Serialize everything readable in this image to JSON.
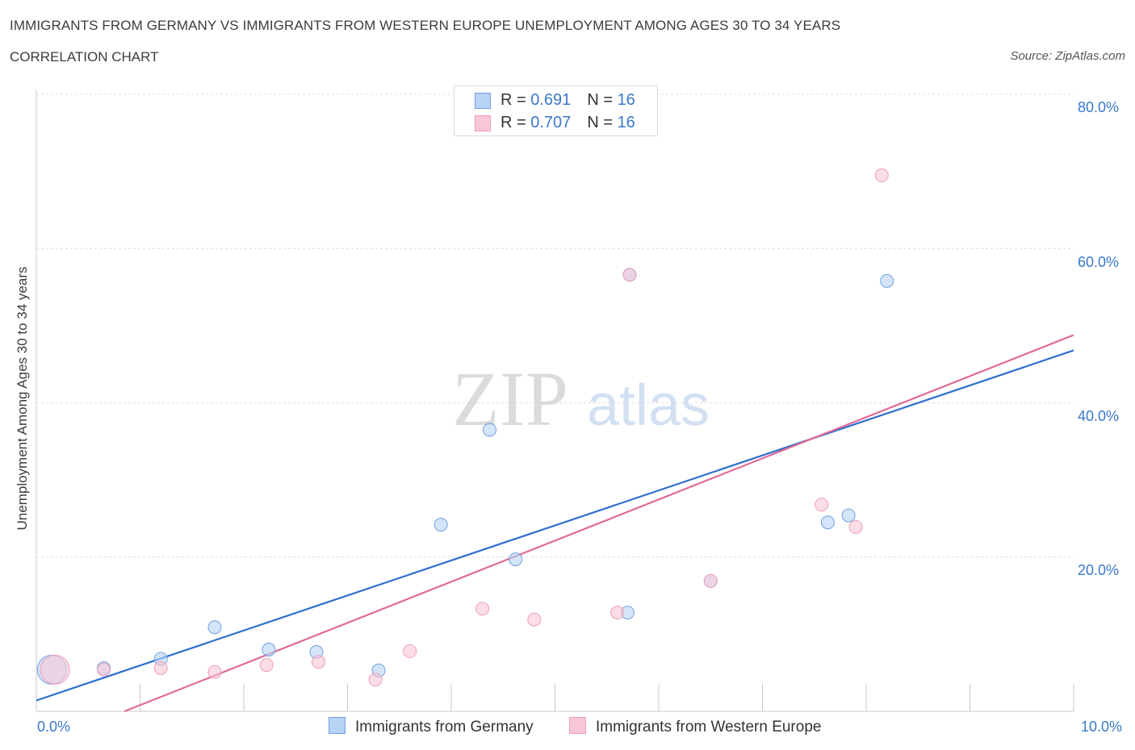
{
  "header": {
    "title": "IMMIGRANTS FROM GERMANY VS IMMIGRANTS FROM WESTERN EUROPE UNEMPLOYMENT AMONG AGES 30 TO 34 YEARS",
    "subtitle": "CORRELATION CHART",
    "source": "Source: ZipAtlas.com"
  },
  "watermark": {
    "zip": "ZIP",
    "atlas": "atlas"
  },
  "legend_top": {
    "rows": [
      {
        "r_label": "R = ",
        "r_value": "0.691",
        "n_label": "N = ",
        "n_value": "16"
      },
      {
        "r_label": "R = ",
        "r_value": "0.707",
        "n_label": "N = ",
        "n_value": "16"
      }
    ]
  },
  "legend_bottom": {
    "germany": "Immigrants from Germany",
    "western_europe": "Immigrants from Western Europe"
  },
  "axes": {
    "ylabel": "Unemployment Among Ages 30 to 34 years",
    "x_min_label": "0.0%",
    "x_max_label": "10.0%",
    "y_ticks": [
      "80.0%",
      "60.0%",
      "40.0%",
      "20.0%"
    ]
  },
  "colors": {
    "germany_fill": "#b8d3f5",
    "germany_stroke": "#6fa0e0",
    "germany_line": "#2f6fcf",
    "we_fill": "#f9c6d5",
    "we_stroke": "#ee9fb7",
    "we_line": "#e06a95",
    "tick_text": "#3a78c9",
    "grid": "#dcdcdc"
  },
  "chart_data": {
    "type": "scatter",
    "title": "IMMIGRANTS FROM GERMANY VS IMMIGRANTS FROM WESTERN EUROPE UNEMPLOYMENT AMONG AGES 30 TO 34 YEARS",
    "xlabel": "",
    "ylabel": "Unemployment Among Ages 30 to 34 years",
    "xlim": [
      0,
      10
    ],
    "ylim": [
      0,
      80
    ],
    "x_unit": "%",
    "y_unit": "%",
    "grid": true,
    "series": [
      {
        "name": "Immigrants from Germany",
        "R": 0.691,
        "N": 16,
        "points": [
          {
            "x": 0.15,
            "y": 5.4,
            "size": "large"
          },
          {
            "x": 0.65,
            "y": 5.6
          },
          {
            "x": 1.2,
            "y": 6.8
          },
          {
            "x": 1.72,
            "y": 10.9
          },
          {
            "x": 2.24,
            "y": 8.0
          },
          {
            "x": 2.7,
            "y": 7.7
          },
          {
            "x": 3.3,
            "y": 5.3
          },
          {
            "x": 3.9,
            "y": 24.2
          },
          {
            "x": 4.37,
            "y": 36.5
          },
          {
            "x": 4.62,
            "y": 19.7
          },
          {
            "x": 5.7,
            "y": 12.8
          },
          {
            "x": 5.72,
            "y": 56.6
          },
          {
            "x": 6.5,
            "y": 16.9
          },
          {
            "x": 7.63,
            "y": 24.5
          },
          {
            "x": 7.83,
            "y": 25.4
          },
          {
            "x": 8.2,
            "y": 55.8
          }
        ],
        "trend": {
          "x": [
            0,
            10
          ],
          "y": [
            1.4,
            46.8
          ]
        }
      },
      {
        "name": "Immigrants from Western Europe",
        "R": 0.707,
        "N": 16,
        "points": [
          {
            "x": 0.18,
            "y": 5.4,
            "size": "large"
          },
          {
            "x": 0.65,
            "y": 5.4
          },
          {
            "x": 1.2,
            "y": 5.6
          },
          {
            "x": 1.72,
            "y": 5.1
          },
          {
            "x": 2.22,
            "y": 6.0
          },
          {
            "x": 2.72,
            "y": 6.4
          },
          {
            "x": 3.27,
            "y": 4.1
          },
          {
            "x": 3.6,
            "y": 7.8
          },
          {
            "x": 4.3,
            "y": 13.3
          },
          {
            "x": 4.8,
            "y": 11.9
          },
          {
            "x": 5.6,
            "y": 12.8
          },
          {
            "x": 5.72,
            "y": 56.6
          },
          {
            "x": 6.5,
            "y": 16.9
          },
          {
            "x": 7.57,
            "y": 26.8
          },
          {
            "x": 7.9,
            "y": 23.9
          },
          {
            "x": 8.15,
            "y": 69.5
          }
        ],
        "trend": {
          "x": [
            0.85,
            10
          ],
          "y": [
            0,
            48.8
          ]
        }
      }
    ]
  }
}
